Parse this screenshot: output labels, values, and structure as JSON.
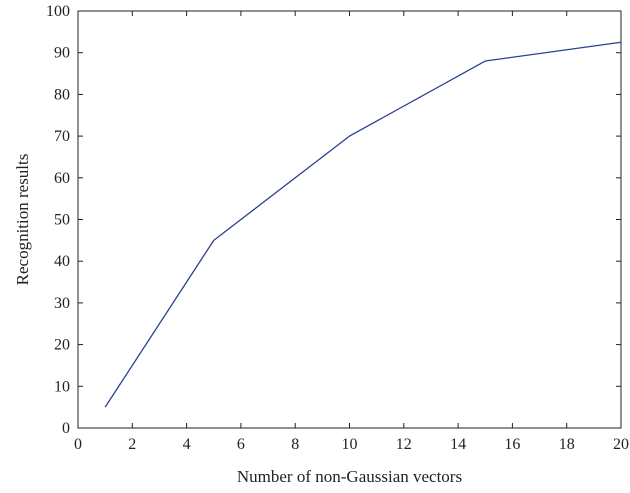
{
  "chart_data": {
    "type": "line",
    "title": "",
    "xlabel": "Number of non-Gaussian vectors",
    "ylabel": "Recognition results",
    "xlim": [
      0,
      20
    ],
    "ylim": [
      0,
      100
    ],
    "xticks": [
      "0",
      "2",
      "4",
      "6",
      "8",
      "10",
      "12",
      "14",
      "16",
      "18",
      "20"
    ],
    "yticks": [
      "0",
      "10",
      "20",
      "30",
      "40",
      "50",
      "60",
      "70",
      "80",
      "90",
      "100"
    ],
    "grid": false,
    "series": [
      {
        "color": "#2b3f93",
        "x": [
          1,
          5,
          10,
          15,
          20
        ],
        "y": [
          5,
          45,
          70,
          88,
          92.5
        ]
      }
    ]
  }
}
